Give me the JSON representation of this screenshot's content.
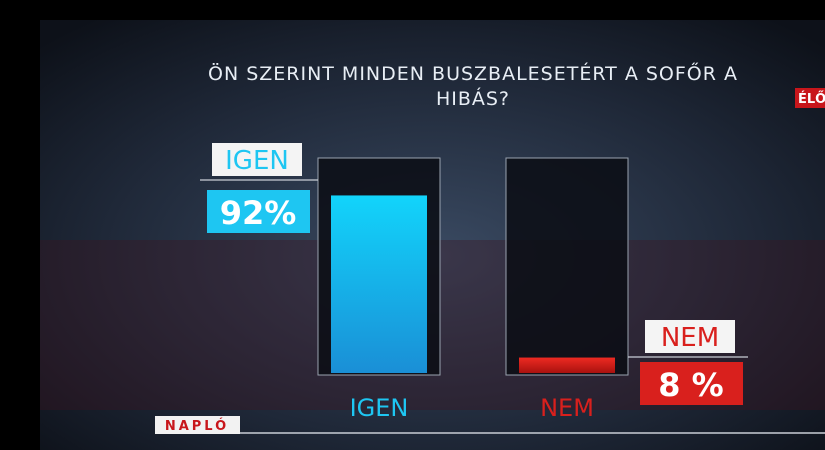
{
  "chart_data": {
    "type": "bar",
    "title": "ÖN SZERINT MINDEN BUSZBALESETÉRT A SOFŐR A HIBÁS?",
    "categories": [
      "IGEN",
      "NEM"
    ],
    "values": [
      92,
      8
    ],
    "value_labels": [
      "92%",
      "8 %"
    ],
    "colors": [
      "#1ec6f2",
      "#d9201d"
    ],
    "ylim": [
      0,
      100
    ]
  },
  "live_badge": "ÉLŐ",
  "show_name": "NAPLÓ"
}
